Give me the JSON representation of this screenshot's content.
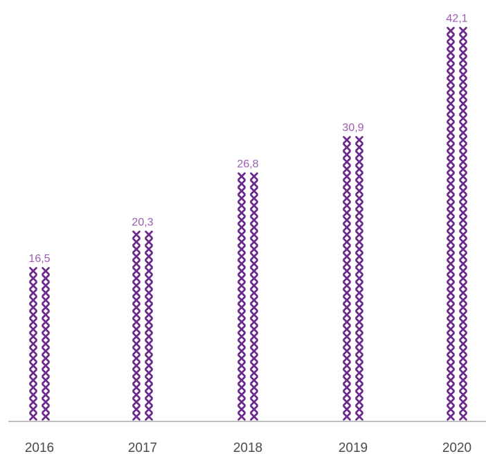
{
  "chart_data": {
    "type": "bar",
    "style": "pictogram",
    "marker": "x-cross-icon",
    "categories": [
      "2016",
      "2017",
      "2018",
      "2019",
      "2020"
    ],
    "values": [
      16.5,
      20.3,
      26.8,
      30.9,
      42.1
    ],
    "value_labels": [
      "16,5",
      "20,3",
      "26,8",
      "30,9",
      "42,1"
    ],
    "title": "",
    "xlabel": "",
    "ylabel": "",
    "ylim": [
      0,
      42.1
    ],
    "grid": false,
    "legend": "none"
  },
  "colors": {
    "marker": "#6b2a8c",
    "value_label": "#9b5bb0",
    "tick_label": "#4a4a4a",
    "baseline": "#999999"
  }
}
